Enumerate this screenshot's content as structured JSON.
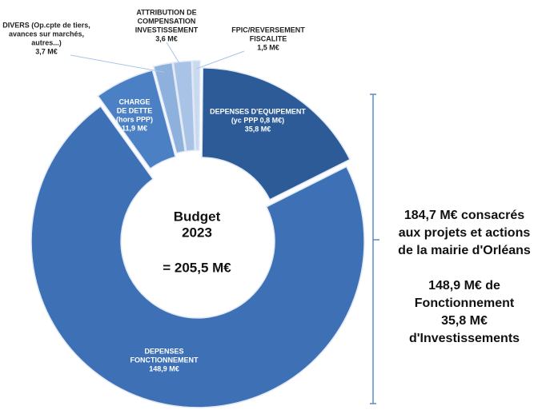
{
  "chart_data": {
    "type": "donut",
    "categories": [
      [
        "DEPENSES D'EQUIPEMENT",
        "(yc PPP 0,8 M€)"
      ],
      [
        "DEPENSES",
        "FONCTIONNEMENT"
      ],
      [
        "CHARGE",
        "DE DETTE",
        "(hors PPP)"
      ],
      [
        "DIVERS (Op.cpte de tiers,",
        "avances sur marchés,",
        "autres...)"
      ],
      [
        "ATTRIBUTION DE",
        "COMPENSATION",
        "INVESTISSEMENT"
      ],
      [
        "FPIC/REVERSEMENT",
        "FISCALITE"
      ]
    ],
    "values": [
      35.8,
      148.9,
      11.9,
      3.7,
      3.6,
      1.5
    ],
    "value_labels": [
      "35,8 M€",
      "148,9 M€",
      "11,9 M€",
      "3,7 M€",
      "3,6 M€",
      "1,5 M€"
    ],
    "colors": [
      "#2d5b98",
      "#3e70b6",
      "#4b80c5",
      "#8db0dc",
      "#a8c3e6",
      "#c9d9ef"
    ],
    "center_text": [
      "Budget",
      "2023",
      "= 205,5 M€"
    ],
    "annotation": [
      "184,7 M€ consacrés",
      "aux projets et actions",
      "de la mairie d'Orléans",
      "148,9 M€ de",
      "Fonctionnement",
      "35,8 M€",
      "d'Investissements"
    ]
  }
}
